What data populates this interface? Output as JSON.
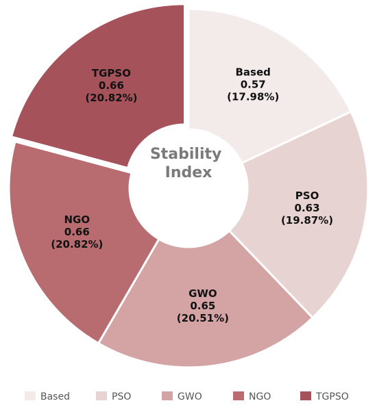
{
  "chart_data": {
    "type": "pie",
    "center_title": [
      "Stability",
      "Index"
    ],
    "categories": [
      "Based",
      "PSO",
      "GWO",
      "NGO",
      "TGPSO"
    ],
    "values": [
      0.57,
      0.63,
      0.65,
      0.66,
      0.66
    ],
    "value_labels": [
      "0.57",
      "0.63",
      "0.65",
      "0.66",
      "0.66"
    ],
    "percent_labels": [
      "(17.98%)",
      "(19.87%)",
      "(20.51%)",
      "(20.82%)",
      "(20.82%)"
    ],
    "colors": [
      "#f3eaea",
      "#e8d3d3",
      "#d4a4a5",
      "#b96c6f",
      "#a5525a"
    ],
    "legend_placement": "bottom",
    "exploded_slice": "TGPSO"
  }
}
